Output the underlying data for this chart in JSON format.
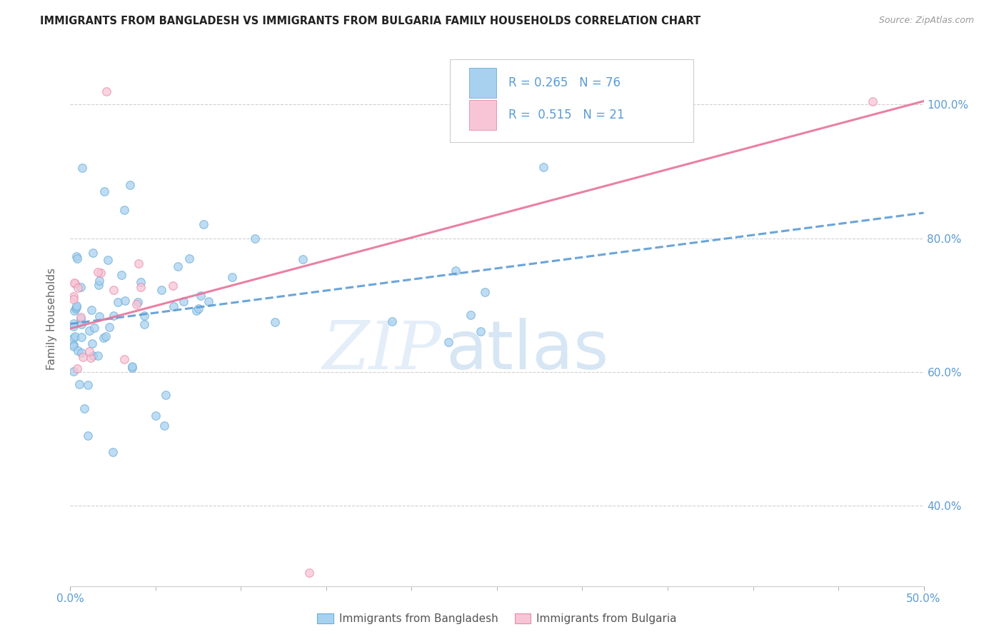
{
  "title": "IMMIGRANTS FROM BANGLADESH VS IMMIGRANTS FROM BULGARIA FAMILY HOUSEHOLDS CORRELATION CHART",
  "source": "Source: ZipAtlas.com",
  "ylabel": "Family Households",
  "xlim": [
    0.0,
    0.5
  ],
  "ylim": [
    0.28,
    1.08
  ],
  "bangladesh_R": 0.265,
  "bangladesh_N": 76,
  "bulgaria_R": 0.515,
  "bulgaria_N": 21,
  "bangladesh_fill_color": "#a8d1f0",
  "bangladesh_edge_color": "#6baed6",
  "bulgaria_fill_color": "#f7c5d5",
  "bulgaria_edge_color": "#e88aaa",
  "trendline_bangladesh_color": "#5b9bd5",
  "trendline_bulgaria_color": "#e8729a",
  "legend_label_bangladesh": "Immigrants from Bangladesh",
  "legend_label_bulgaria": "Immigrants from Bulgaria",
  "watermark_zip": "ZIP",
  "watermark_atlas": "atlas",
  "background_color": "#ffffff",
  "grid_color": "#d0d0d0",
  "axis_label_color": "#5b9bd5",
  "title_color": "#222222",
  "source_color": "#999999",
  "ylabel_color": "#666666",
  "x_tick_positions": [
    0.0,
    0.5
  ],
  "x_tick_labels": [
    "0.0%",
    "50.0%"
  ],
  "y_tick_positions": [
    0.4,
    0.6,
    0.8,
    1.0
  ],
  "y_tick_labels": [
    "40.0%",
    "60.0%",
    "80.0%",
    "100.0%"
  ],
  "trendline_bd_x0": 0.0,
  "trendline_bd_y0": 0.672,
  "trendline_bd_x1": 0.5,
  "trendline_bd_y1": 0.838,
  "trendline_bg_x0": 0.0,
  "trendline_bg_y0": 0.665,
  "trendline_bg_x1": 0.5,
  "trendline_bg_y1": 1.005
}
